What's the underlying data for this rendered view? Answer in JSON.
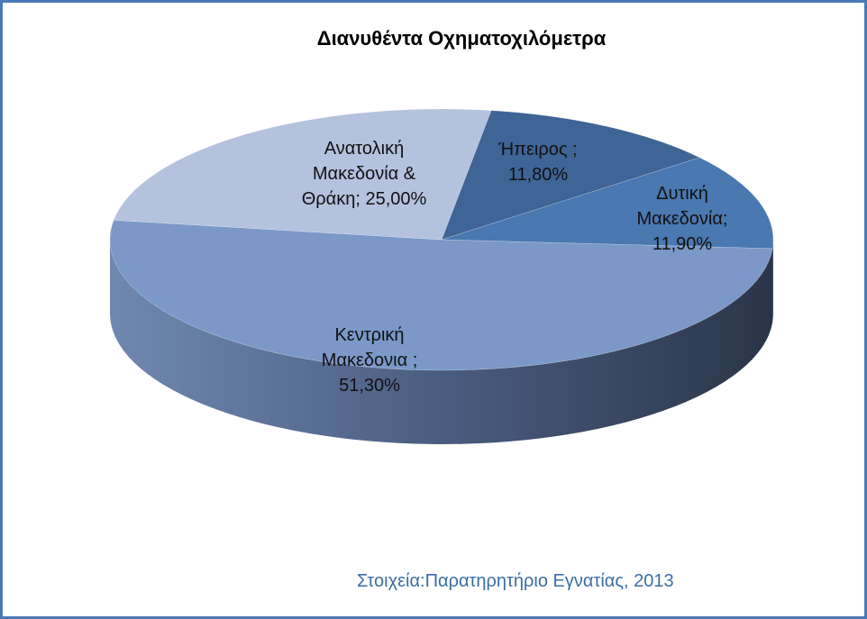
{
  "chart_data": {
    "type": "pie",
    "title": "Διανυθέντα Οχηματοχιλόμετρα",
    "source": "Στοιχεία:Παρατηρητήριο Εγνατίας, 2013",
    "categories": [
      "Ήπειρος ;",
      "Δυτική Μακεδονία;",
      "Κεντρική Μακεδονια ;",
      "Ανατολική Μακεδονία & Θράκη;"
    ],
    "values": [
      11.8,
      11.9,
      51.3,
      25
    ],
    "value_labels": [
      "11,80%",
      "11,90%",
      "51,30%",
      "25,00%"
    ],
    "colors": [
      "#3f6496",
      "#4a78b0",
      "#7b98c8",
      "#b4c2de"
    ]
  }
}
